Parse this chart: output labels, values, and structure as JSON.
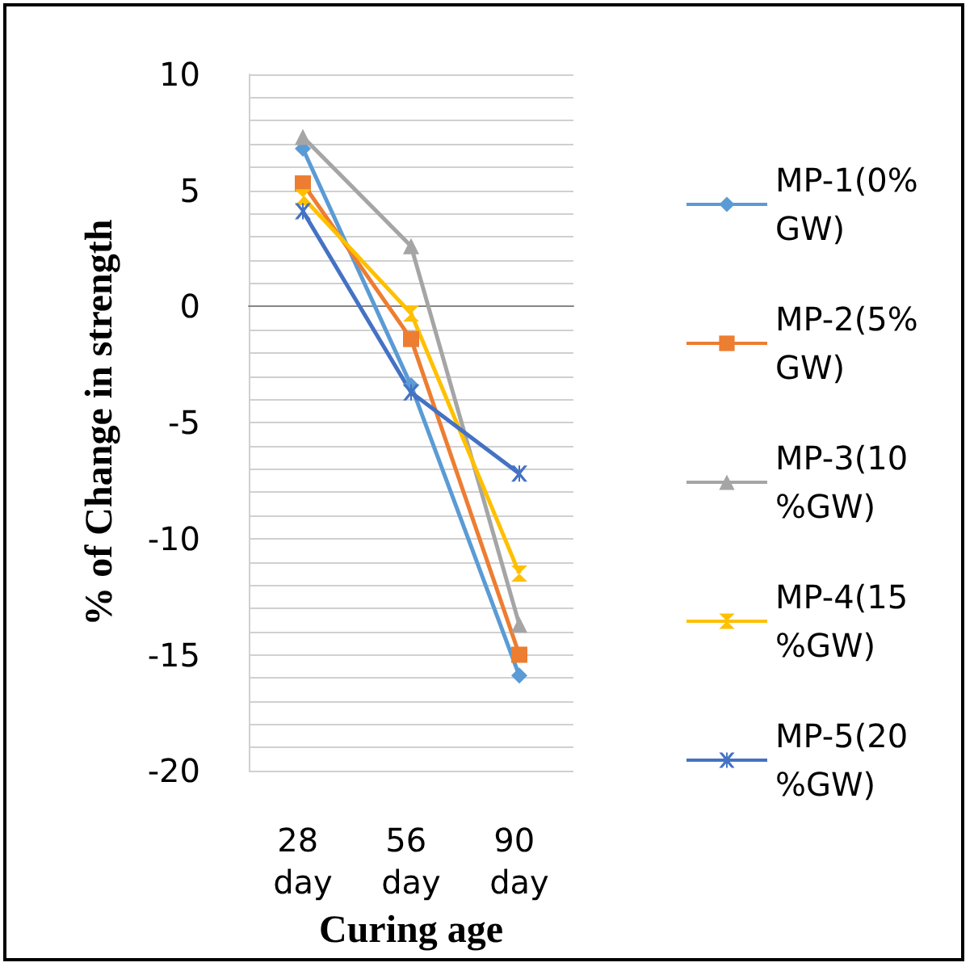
{
  "chart_data": {
    "type": "line",
    "xlabel": "Curing age",
    "ylabel": "% of Change in strength",
    "categories": [
      "28 day",
      "56 day",
      "90 day"
    ],
    "series": [
      {
        "name": "MP-1(0%GW)",
        "color": "#5b9bd5",
        "marker": "diamond",
        "values": [
          6.8,
          -3.4,
          -15.9
        ]
      },
      {
        "name": "MP-2(5%GW)",
        "color": "#ed7d31",
        "marker": "square",
        "values": [
          5.3,
          -1.4,
          -15.0
        ]
      },
      {
        "name": "MP-3(10%GW)",
        "color": "#a5a5a5",
        "marker": "triangle",
        "values": [
          7.3,
          2.6,
          -13.7
        ]
      },
      {
        "name": "MP-4(15%GW)",
        "color": "#ffc000",
        "marker": "star",
        "values": [
          4.7,
          -0.3,
          -11.5
        ]
      },
      {
        "name": "MP-5(20%GW)",
        "color": "#4472c4",
        "marker": "cross",
        "values": [
          4.1,
          -3.7,
          -7.2
        ]
      }
    ],
    "ylim": [
      -20,
      10
    ],
    "yticks": [
      -20,
      -15,
      -10,
      -5,
      0,
      5,
      10
    ],
    "grid": "y",
    "legend": "right"
  }
}
